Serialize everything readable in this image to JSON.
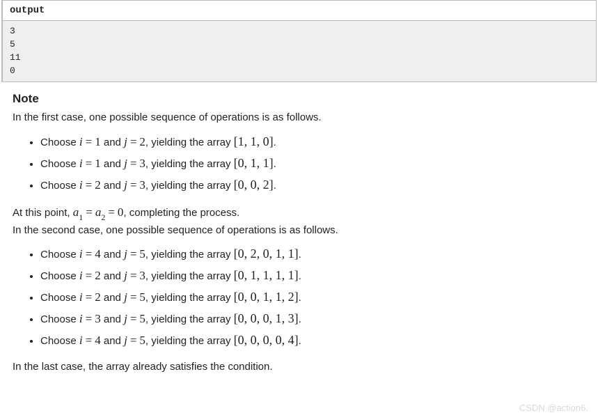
{
  "output": {
    "label": "output",
    "lines": [
      "3",
      "5",
      "11",
      "0"
    ]
  },
  "note": {
    "heading": "Note",
    "intro1": "In the first case, one possible sequence of operations is as follows.",
    "case1": [
      {
        "i": "1",
        "j": "2",
        "array": "[1, 1, 0]"
      },
      {
        "i": "1",
        "j": "3",
        "array": "[0, 1, 1]"
      },
      {
        "i": "2",
        "j": "3",
        "array": "[0, 0, 2]"
      }
    ],
    "midline_prefix": "At this point, ",
    "midline_a1": "a",
    "midline_sub1": "1",
    "midline_a2": "a",
    "midline_sub2": "2",
    "midline_zero": "0",
    "midline_suffix": ", completing the process.",
    "intro2": "In the second case, one possible sequence of operations is as follows.",
    "case2": [
      {
        "i": "4",
        "j": "5",
        "array": "[0, 2, 0, 1, 1]"
      },
      {
        "i": "2",
        "j": "3",
        "array": "[0, 1, 1, 1, 1]"
      },
      {
        "i": "2",
        "j": "5",
        "array": "[0, 0, 1, 1, 2]"
      },
      {
        "i": "3",
        "j": "5",
        "array": "[0, 0, 0, 1, 3]"
      },
      {
        "i": "4",
        "j": "5",
        "array": "[0, 0, 0, 0, 4]"
      }
    ],
    "lastline": "In the last case, the array already satisfies the condition."
  },
  "phrases": {
    "choose": "Choose ",
    "i": "i",
    "j": "j",
    "and": " and ",
    "yielding": ", yielding the array ",
    "period": "."
  },
  "watermark": "CSDN @action6."
}
